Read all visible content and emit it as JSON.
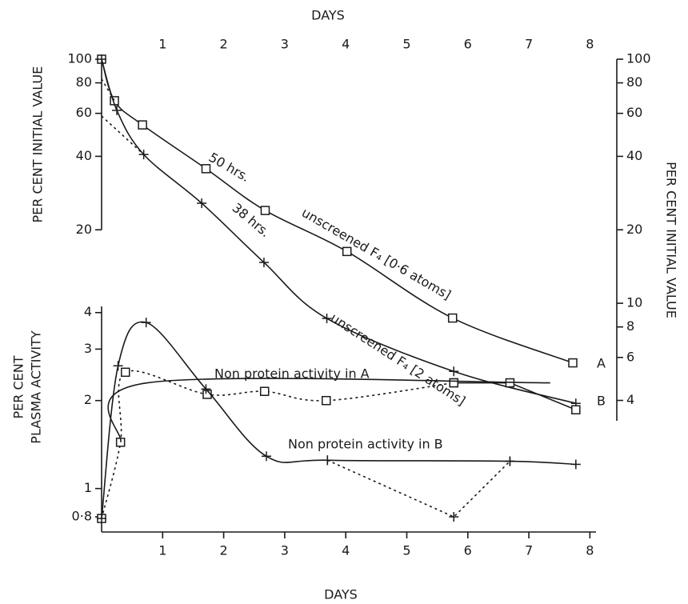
{
  "chart_data": [
    {
      "type": "line",
      "xlabel": "DAYS",
      "ylabel": "PER CENT INITIAL VALUE",
      "y2label": "PER CENT INITIAL VALUE",
      "xlim": [
        0,
        8.1
      ],
      "xticks": [
        1,
        2,
        3,
        4,
        5,
        6,
        7,
        8
      ],
      "ylog": true,
      "ylim": [
        3.3,
        100
      ],
      "yticks": [
        100,
        80,
        60,
        40,
        20
      ],
      "y2lim": [
        3.3,
        100
      ],
      "y2ticks": [
        100,
        80,
        60,
        40,
        20,
        10,
        8,
        6,
        4
      ],
      "grid": false,
      "color": "#1a1a1a",
      "series": [
        {
          "x": [
            0,
            0.21,
            0.67,
            1.71,
            2.68,
            4.02,
            5.75,
            7.72
          ],
          "values": [
            100,
            67.6,
            53.8,
            35.6,
            24.0,
            16.3,
            8.7,
            5.7
          ],
          "marker": "square",
          "dash": false,
          "smooth": true
        },
        {
          "x": [
            0,
            0.25,
            0.69,
            1.64,
            2.66,
            3.69,
            5.77,
            7.77
          ],
          "values": [
            100,
            61.7,
            40.7,
            25.7,
            14.7,
            8.67,
            5.26,
            3.89
          ],
          "marker": "plus",
          "dash": false,
          "smooth": true
        },
        {
          "x": [
            0,
            0.21
          ],
          "values": [
            83,
            67.6
          ],
          "marker": "none",
          "dash": true,
          "smooth": false
        },
        {
          "x": [
            0,
            0.69
          ],
          "values": [
            58.5,
            40.7
          ],
          "marker": "none",
          "dash": true,
          "smooth": false
        }
      ],
      "annotations": [
        "50 hrs.",
        "unscreened F₄ [0·6 atoms]",
        "38 hrs.",
        "unscreened F₄ [2 atoms]",
        "A",
        "B"
      ]
    },
    {
      "type": "line",
      "xlabel": "DAYS",
      "ylabel": [
        "PER CENT",
        "PLASMA ACTIVITY"
      ],
      "xlim": [
        0,
        8.1
      ],
      "xticks": [
        1,
        2,
        3,
        4,
        5,
        6,
        7,
        8
      ],
      "ylog": true,
      "ylim": [
        0.71,
        4.2
      ],
      "yticks": [
        4,
        3,
        2,
        1,
        {
          "value": 0.8,
          "label": "0·8"
        }
      ],
      "grid": false,
      "color": "#1a1a1a",
      "series": [
        {
          "x": [
            0,
            0.31,
            0.39,
            1.73,
            2.67,
            3.68,
            5.77
          ],
          "values": [
            0.79,
            1.44,
            2.5,
            2.1,
            2.15,
            2.0,
            2.3
          ],
          "marker": "square",
          "dash": true,
          "smooth": true
        },
        {
          "x": [
            5.77,
            6.69,
            7.77
          ],
          "values": [
            2.3,
            2.3,
            1.86
          ],
          "marker": "square",
          "dash": false,
          "smooth": false
        },
        {
          "x": [
            0.31,
            0.75,
            7.35
          ],
          "values": [
            1.44,
            2.3,
            2.3
          ],
          "marker": "none",
          "dash": false,
          "smooth": true
        },
        {
          "x": [
            0,
            0.27,
            0.73,
            1.71,
            2.7,
            3.7,
            6.69,
            7.77
          ],
          "values": [
            0.79,
            2.63,
            3.7,
            2.19,
            1.29,
            1.25,
            1.24,
            1.21
          ],
          "marker": "plus",
          "dash": false,
          "smooth": true
        },
        {
          "x": [
            3.7,
            5.77,
            6.69
          ],
          "values": [
            1.25,
            0.8,
            1.24
          ],
          "marker": "plus",
          "dash": true,
          "smooth": false
        }
      ],
      "annotations": [
        "Non protein activity in A",
        "Non protein activity in B"
      ]
    }
  ]
}
